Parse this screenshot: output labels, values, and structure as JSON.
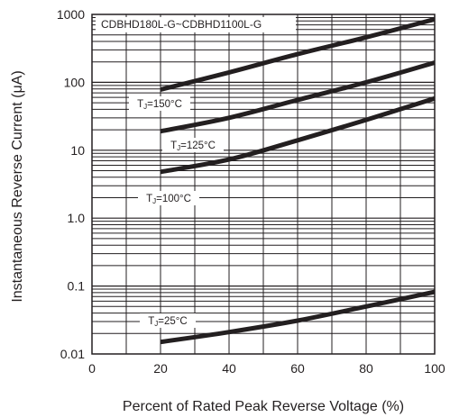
{
  "chart_data": {
    "type": "line",
    "title": "CDBHD180L-G~CDBHD1100L-G",
    "xlabel": "Percent of Rated Peak Reverse Voltage (%)",
    "ylabel": "Instantaneous Reverse Current (μA)",
    "x_scale": "linear",
    "y_scale": "log",
    "xlim": [
      0,
      100
    ],
    "ylim": [
      0.01,
      1000
    ],
    "xticks": [
      0,
      20,
      40,
      60,
      80,
      100
    ],
    "xtick_labels": [
      "0",
      "20",
      "40",
      "60",
      "80",
      "100"
    ],
    "yticks": [
      0.01,
      0.1,
      1,
      10,
      100,
      1000
    ],
    "ytick_labels": [
      "0.01",
      "0.1",
      "1.0",
      "10",
      "100",
      "1000"
    ],
    "grid": true,
    "series": [
      {
        "name": "TJ=150°C",
        "x": [
          20,
          40,
          60,
          80,
          100
        ],
        "y": [
          78,
          140,
          260,
          460,
          850
        ]
      },
      {
        "name": "TJ=125°C",
        "x": [
          20,
          40,
          60,
          80,
          100
        ],
        "y": [
          19,
          30,
          55,
          100,
          195
        ]
      },
      {
        "name": "TJ=100°C",
        "x": [
          20,
          40,
          60,
          80,
          100
        ],
        "y": [
          4.8,
          7.3,
          14,
          28,
          58
        ]
      },
      {
        "name": "TJ=25°C",
        "x": [
          20,
          40,
          60,
          80,
          100
        ],
        "y": [
          0.015,
          0.021,
          0.031,
          0.05,
          0.082
        ]
      }
    ],
    "series_labels": [
      {
        "subscript": "J",
        "prefix": "T",
        "suffix": "=150°C"
      },
      {
        "subscript": "J",
        "prefix": "T",
        "suffix": "=125°C"
      },
      {
        "subscript": "J",
        "prefix": "T",
        "suffix": "=100°C"
      },
      {
        "subscript": "J",
        "prefix": "T",
        "suffix": "=25°C"
      }
    ],
    "colors": {
      "line": "#231f20",
      "grid": "#231f20",
      "background": "#ffffff"
    }
  }
}
